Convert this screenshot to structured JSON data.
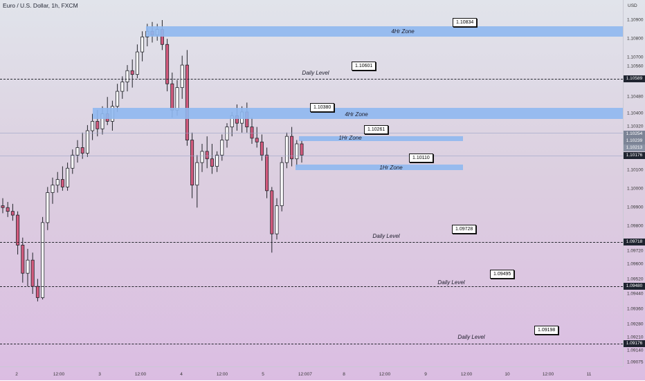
{
  "header": {
    "title": "Euro / U.S. Dollar, 1h, FXCM",
    "currency": "USD"
  },
  "colors": {
    "up": "#ffffff",
    "down": "#d25a7d",
    "wick": "#202228",
    "zone": "#8fb8ef"
  },
  "price_ticks": [
    "1.10900",
    "1.10800",
    "1.10700",
    "1.10560",
    "1.10480",
    "1.10400",
    "1.10320",
    "1.10100",
    "1.10000",
    "1.09900",
    "1.09800",
    "1.09720",
    "1.09600",
    "1.09520",
    "1.09440",
    "1.09360",
    "1.09280",
    "1.09210",
    "1.09140",
    "1.09075"
  ],
  "price_badges": [
    {
      "value": "1.10589",
      "color": "#1f2430"
    },
    {
      "value": "1.10254",
      "color": "#7c8496"
    },
    {
      "value": "1.10239",
      "color": "#7c8496"
    },
    {
      "value": "1.10213",
      "color": "#8a92a4"
    },
    {
      "value": "1.10176",
      "color": "#1f2430"
    },
    {
      "value": "1.09718",
      "color": "#1f2430"
    },
    {
      "value": "1.09480",
      "color": "#1f2430"
    },
    {
      "value": "1.09176",
      "color": "#1f2430"
    }
  ],
  "time_ticks": [
    "2",
    "12:00",
    "3",
    "12:00",
    "4",
    "12:00",
    "5",
    "12:00",
    "7",
    "8",
    "12:00",
    "9",
    "12:00",
    "10",
    "12:00",
    "11"
  ],
  "zones": [
    {
      "label": "4Hr Zone",
      "callout": "1.10834"
    },
    {
      "label": "4Hr Zone",
      "callout": "1.10380"
    },
    {
      "label": "1Hr Zone",
      "callout": "1.10261"
    },
    {
      "label": "1Hr Zone",
      "callout": "1.10110"
    }
  ],
  "daily_levels": [
    {
      "label": "Daily Level",
      "callout": "1.10601"
    },
    {
      "label": "Daily Level",
      "callout": "1.09728"
    },
    {
      "label": "Daily Level",
      "callout": "1.09495"
    },
    {
      "label": "Daily Level",
      "callout": "1.09198"
    }
  ],
  "candles": [
    [
      1.0991,
      1.0995,
      1.0987,
      1.099
    ],
    [
      1.099,
      1.0993,
      1.0985,
      1.0988
    ],
    [
      1.0988,
      1.0992,
      1.0983,
      1.0986
    ],
    [
      1.0986,
      1.0988,
      1.0965,
      1.097
    ],
    [
      1.097,
      1.0974,
      1.095,
      1.0955
    ],
    [
      1.0955,
      1.0968,
      1.0948,
      1.0962
    ],
    [
      1.0962,
      1.0966,
      1.0944,
      1.0948
    ],
    [
      1.0948,
      1.0952,
      1.094,
      1.0942
    ],
    [
      1.0942,
      1.0985,
      1.0941,
      1.0982
    ],
    [
      1.0982,
      1.1001,
      1.0978,
      1.0998
    ],
    [
      1.0998,
      1.1006,
      1.0992,
      1.1002
    ],
    [
      1.1002,
      1.1009,
      1.0998,
      1.1005
    ],
    [
      1.1005,
      1.1012,
      1.0999,
      1.1001
    ],
    [
      1.1001,
      1.1014,
      1.0999,
      1.1011
    ],
    [
      1.1011,
      1.1021,
      1.1008,
      1.1018
    ],
    [
      1.1018,
      1.1026,
      1.1014,
      1.1022
    ],
    [
      1.1022,
      1.103,
      1.1016,
      1.1019
    ],
    [
      1.1019,
      1.1034,
      1.1017,
      1.1031
    ],
    [
      1.1031,
      1.104,
      1.1026,
      1.1036
    ],
    [
      1.1036,
      1.1042,
      1.1028,
      1.1032
    ],
    [
      1.1032,
      1.1044,
      1.1029,
      1.104
    ],
    [
      1.104,
      1.1049,
      1.1034,
      1.1036
    ],
    [
      1.1036,
      1.1047,
      1.1031,
      1.1044
    ],
    [
      1.1044,
      1.1056,
      1.1041,
      1.1052
    ],
    [
      1.1052,
      1.106,
      1.1048,
      1.1057
    ],
    [
      1.1057,
      1.1066,
      1.1052,
      1.1063
    ],
    [
      1.1063,
      1.1069,
      1.1054,
      1.1061
    ],
    [
      1.1061,
      1.1077,
      1.1059,
      1.1073
    ],
    [
      1.1073,
      1.1084,
      1.1068,
      1.1081
    ],
    [
      1.1081,
      1.1088,
      1.1076,
      1.1084
    ],
    [
      1.1084,
      1.1089,
      1.1078,
      1.1082
    ],
    [
      1.1082,
      1.1088,
      1.1079,
      1.1085
    ],
    [
      1.1085,
      1.109,
      1.1074,
      1.1077
    ],
    [
      1.1077,
      1.108,
      1.1052,
      1.1056
    ],
    [
      1.1056,
      1.1062,
      1.1038,
      1.1042
    ],
    [
      1.1042,
      1.1058,
      1.1039,
      1.1054
    ],
    [
      1.1054,
      1.1071,
      1.1048,
      1.1066
    ],
    [
      1.1066,
      1.1074,
      1.1023,
      1.1026
    ],
    [
      1.1026,
      1.103,
      1.0995,
      1.1002
    ],
    [
      1.1002,
      1.1018,
      1.099,
      1.1014
    ],
    [
      1.1014,
      1.1024,
      1.1009,
      1.102
    ],
    [
      1.102,
      1.1028,
      1.1011,
      1.1016
    ],
    [
      1.1016,
      1.1024,
      1.1008,
      1.1012
    ],
    [
      1.1012,
      1.102,
      1.1009,
      1.1018
    ],
    [
      1.1018,
      1.1029,
      1.1015,
      1.1026
    ],
    [
      1.1026,
      1.1035,
      1.1022,
      1.1033
    ],
    [
      1.1033,
      1.1041,
      1.1028,
      1.1039
    ],
    [
      1.1039,
      1.1045,
      1.1031,
      1.1035
    ],
    [
      1.1035,
      1.1044,
      1.103,
      1.1041
    ],
    [
      1.1041,
      1.1046,
      1.103,
      1.1033
    ],
    [
      1.1033,
      1.1038,
      1.1024,
      1.1027
    ],
    [
      1.1027,
      1.1033,
      1.1022,
      1.1025
    ],
    [
      1.1025,
      1.1029,
      1.1015,
      1.1018
    ],
    [
      1.1018,
      1.1022,
      1.0995,
      1.0999
    ],
    [
      1.0999,
      1.1001,
      1.0966,
      1.0976
    ],
    [
      1.0976,
      1.0995,
      1.0973,
      1.0991
    ],
    [
      1.0991,
      1.1017,
      1.0988,
      1.1014
    ],
    [
      1.1014,
      1.103,
      1.1011,
      1.1028
    ],
    [
      1.1028,
      1.1033,
      1.1012,
      1.1016
    ],
    [
      1.1016,
      1.1026,
      1.1012,
      1.1024
    ],
    [
      1.1024,
      1.1026,
      1.1014,
      1.1018
    ]
  ]
}
